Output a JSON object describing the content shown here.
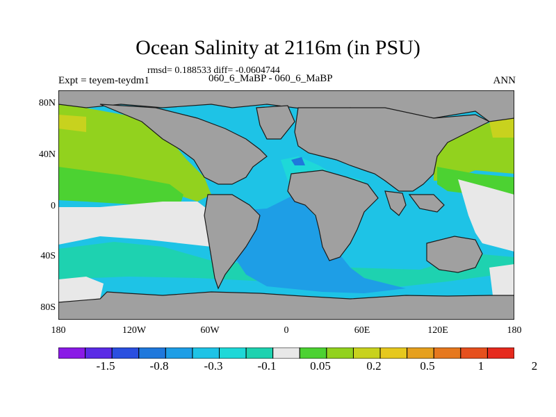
{
  "title": "Ocean Salinity at 2116m (in PSU)",
  "stats": "rmsd= 0.188533 diff= -0.0604744",
  "experiment": "Expt = teyem-teydm1",
  "comparison": "060_6_MaBP - 060_6_MaBP",
  "season": "ANN",
  "axes": {
    "lat_labels": [
      "80N",
      "40N",
      "0",
      "40S",
      "80S"
    ],
    "lon_labels": [
      "180",
      "120W",
      "60W",
      "0",
      "60E",
      "120E",
      "180"
    ]
  },
  "colorbar": {
    "colors": [
      "#8a1ae6",
      "#5a2be6",
      "#2a4fe0",
      "#1f78dc",
      "#1e9ee6",
      "#1ec3e6",
      "#1ed8d8",
      "#1ed2b0",
      "#e8e8e8",
      "#4cd232",
      "#92d21e",
      "#c8d21e",
      "#e6c81e",
      "#e6a01e",
      "#e6781e",
      "#e6501e",
      "#e62a1e"
    ],
    "labels": [
      "-1.5",
      "-0.8",
      "-0.3",
      "-0.1",
      "0.05",
      "0.2",
      "0.5",
      "1",
      "2"
    ]
  }
}
